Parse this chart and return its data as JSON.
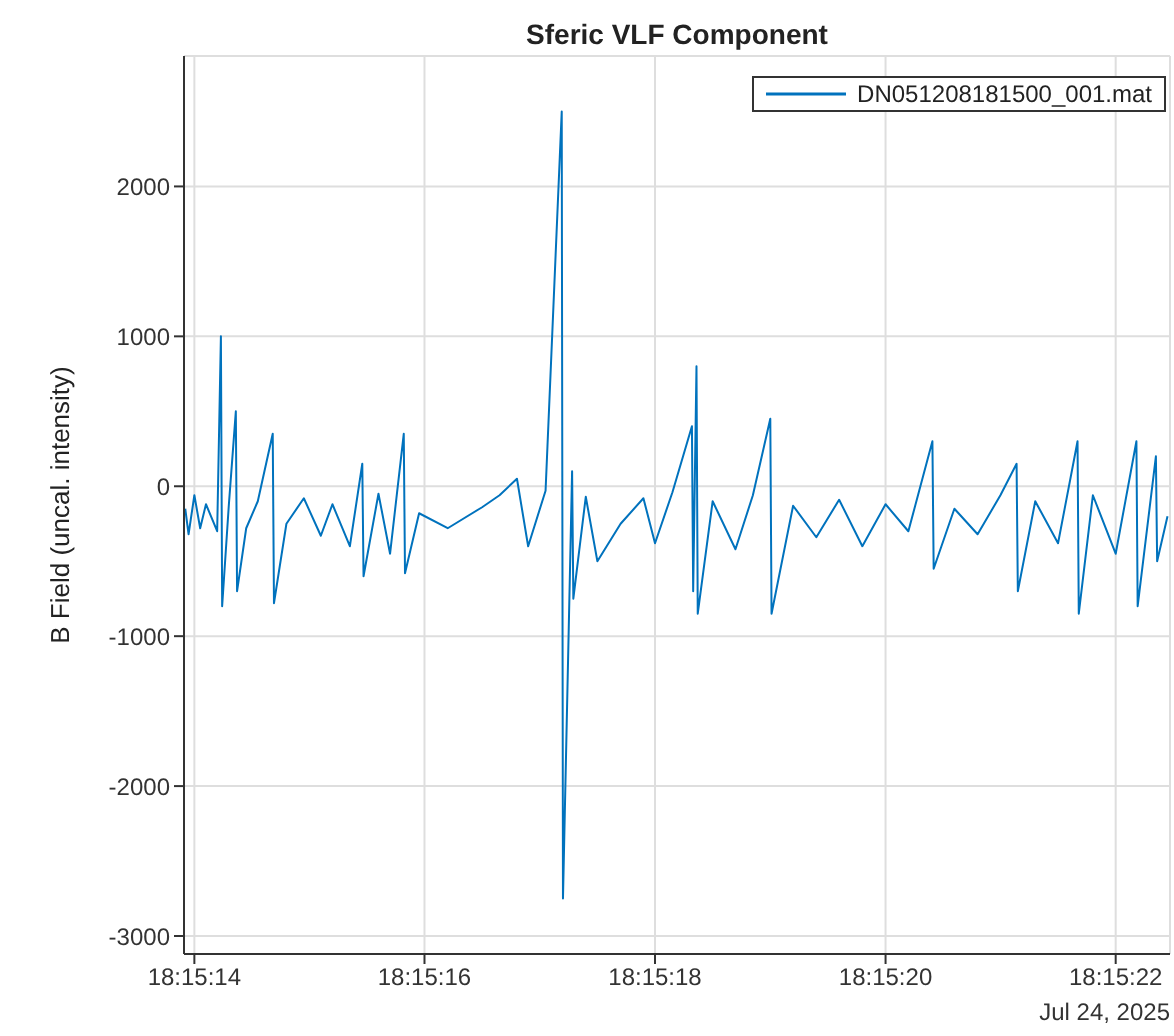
{
  "chart_data": {
    "type": "line",
    "title": "Sferic VLF Component",
    "ylabel": "B Field (uncal. intensity)",
    "annotations": [
      "Jul 24, 2025"
    ],
    "xlim": [
      18.253864,
      18.256242
    ],
    "ylim": [
      -3120,
      2870
    ],
    "xticks": [
      {
        "value": 18.253889,
        "label": "18:15:14"
      },
      {
        "value": 18.254444,
        "label": "18:15:16"
      },
      {
        "value": 18.255,
        "label": "18:15:18"
      },
      {
        "value": 18.255556,
        "label": "18:15:20"
      },
      {
        "value": 18.256111,
        "label": "18:15:22"
      }
    ],
    "yticks": [
      -3000,
      -2000,
      -1000,
      0,
      1000,
      2000
    ],
    "grid": true,
    "legend": "top right",
    "series": [
      {
        "name": "DN051208181500_001.mat",
        "color": "#0072bd",
        "x": [
          18.253867,
          18.253875,
          18.253889,
          18.253903,
          18.253917,
          18.253944,
          18.253953,
          18.253956,
          18.253972,
          18.253989,
          18.253992,
          18.254014,
          18.254042,
          18.254078,
          18.254081,
          18.254111,
          18.254153,
          18.254194,
          18.254222,
          18.254264,
          18.254294,
          18.254297,
          18.254333,
          18.254361,
          18.254394,
          18.254397,
          18.254431,
          18.2545,
          18.254583,
          18.254625,
          18.254667,
          18.254694,
          18.254736,
          18.254775,
          18.254778,
          18.2548,
          18.254803,
          18.254833,
          18.254861,
          18.254917,
          18.254972,
          18.255,
          18.255042,
          18.255089,
          18.255092,
          18.2551,
          18.255103,
          18.255139,
          18.255194,
          18.255236,
          18.255278,
          18.255281,
          18.255333,
          18.255389,
          18.255444,
          18.2555,
          18.255556,
          18.255611,
          18.255669,
          18.255672,
          18.255722,
          18.255778,
          18.255833,
          18.255872,
          18.255875,
          18.255917,
          18.255972,
          18.256019,
          18.256022,
          18.256056,
          18.256111,
          18.256161,
          18.256164,
          18.256208,
          18.256211,
          18.256236
        ],
        "values": [
          -150,
          -320,
          -60,
          -280,
          -120,
          -300,
          1000,
          -800,
          -130,
          500,
          -700,
          -280,
          -100,
          350,
          -780,
          -250,
          -80,
          -330,
          -120,
          -400,
          150,
          -600,
          -50,
          -450,
          350,
          -580,
          -180,
          -280,
          -140,
          -60,
          50,
          -400,
          -30,
          2500,
          -2750,
          100,
          -750,
          -70,
          -500,
          -250,
          -80,
          -380,
          -40,
          400,
          -700,
          800,
          -850,
          -100,
          -420,
          -60,
          450,
          -850,
          -130,
          -340,
          -90,
          -400,
          -120,
          -300,
          300,
          -550,
          -150,
          -320,
          -60,
          150,
          -700,
          -100,
          -380,
          300,
          -850,
          -60,
          -450,
          300,
          -800,
          200,
          -500,
          -200
        ]
      }
    ]
  }
}
